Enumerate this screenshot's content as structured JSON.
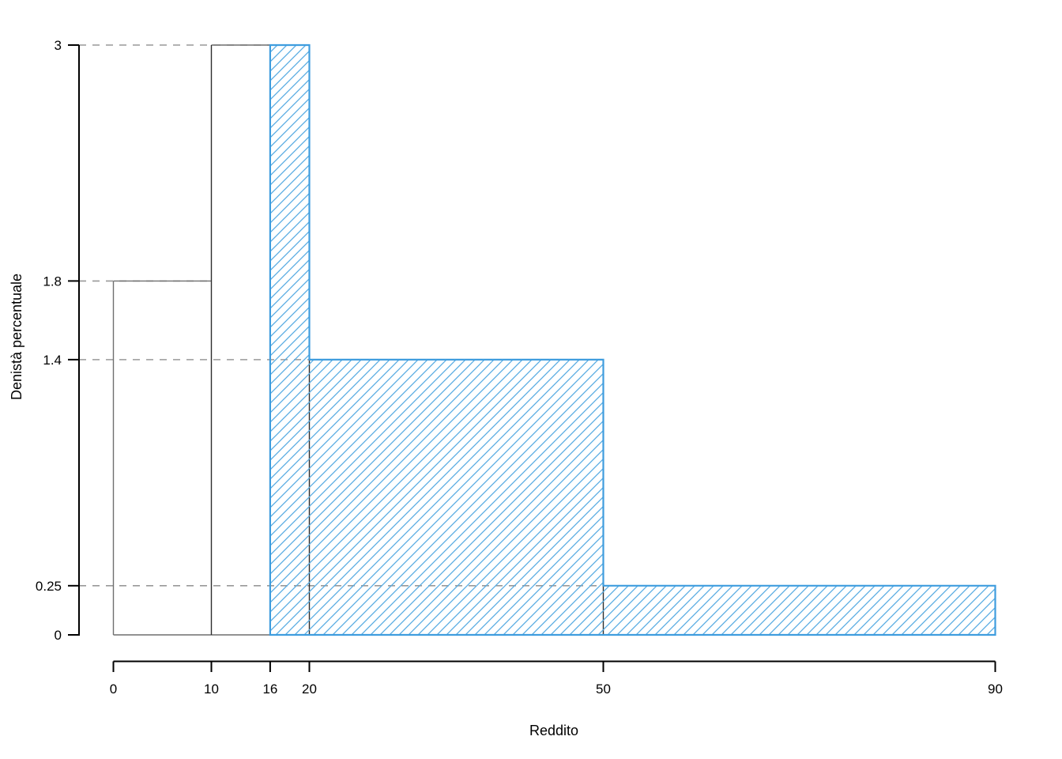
{
  "chart_data": {
    "type": "histogram",
    "title": "",
    "xlabel": "Reddito",
    "ylabel": "Denistà percentuale",
    "xlim": [
      0,
      90
    ],
    "ylim": [
      0,
      3
    ],
    "x_ticks": [
      0,
      10,
      16,
      20,
      50,
      90
    ],
    "x_tick_labels": [
      "0",
      "10",
      "16",
      "20",
      "50",
      "90"
    ],
    "y_ticks": [
      0,
      0.25,
      1.4,
      1.8,
      3
    ],
    "y_tick_labels": [
      "0",
      "0.25",
      "1.4",
      "1.8",
      "3"
    ],
    "grid": "none",
    "legend": "none",
    "series": [
      {
        "name": "istogramma-completo",
        "style": "outline",
        "stroke": "#6f6f6f",
        "edge_stroke": "#2e2e2e",
        "fill": "none",
        "bins": [
          {
            "from": 0,
            "to": 10,
            "density": 1.8
          },
          {
            "from": 10,
            "to": 20,
            "density": 3
          },
          {
            "from": 20,
            "to": 50,
            "density": 1.4
          },
          {
            "from": 50,
            "to": 90,
            "density": 0.25
          }
        ]
      },
      {
        "name": "area-evidenziata-oltre-16",
        "style": "hatched",
        "stroke": "#3f9dde",
        "hatch_color": "#58abe2",
        "fill": "hatch",
        "bins": [
          {
            "from": 16,
            "to": 20,
            "density": 3
          },
          {
            "from": 20,
            "to": 50,
            "density": 1.4
          },
          {
            "from": 50,
            "to": 90,
            "density": 0.25
          }
        ]
      }
    ],
    "reference_lines": [
      {
        "y": 3,
        "to_x": 20,
        "style": "dashed",
        "color": "#999999"
      },
      {
        "y": 1.8,
        "to_x": 10,
        "style": "dashed",
        "color": "#999999"
      },
      {
        "y": 1.4,
        "to_x": 50,
        "style": "dashed",
        "color": "#999999"
      },
      {
        "y": 0.25,
        "to_x": 50,
        "style": "dashed",
        "color": "#999999"
      }
    ],
    "colors": {
      "axis": "#000000",
      "background": "#ffffff",
      "base_histogram": "#6f6f6f",
      "highlight_border": "#3f9dde",
      "highlight_hatch": "#58abe2",
      "dashed_reference": "#999999"
    }
  }
}
